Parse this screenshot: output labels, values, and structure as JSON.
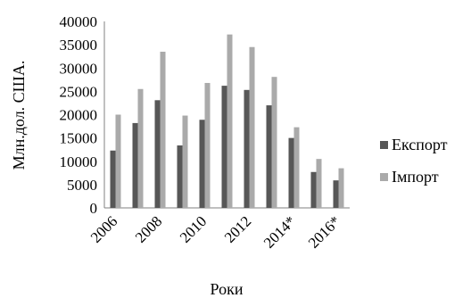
{
  "chart_data": {
    "type": "bar",
    "categories": [
      "2006",
      "2007",
      "2008",
      "2009",
      "2010",
      "2011",
      "2012",
      "2013",
      "2014*",
      "2015*",
      "2016*"
    ],
    "visible_x_tick_labels": [
      "2006",
      "2008",
      "2010",
      "2012",
      "2014*",
      "2016*"
    ],
    "series": [
      {
        "name": "Експорт",
        "values": [
          12300,
          18200,
          23100,
          13400,
          18900,
          26200,
          25300,
          22000,
          15000,
          7700,
          5900
        ],
        "color": "#575757"
      },
      {
        "name": "Імпорт",
        "values": [
          20000,
          25500,
          33500,
          19800,
          26800,
          37200,
          34500,
          28100,
          17300,
          10500,
          8500
        ],
        "color": "#aaaaaa"
      }
    ],
    "ylim": [
      0,
      40000
    ],
    "yticks": [
      "0",
      "5000",
      "10000",
      "15000",
      "20000",
      "25000",
      "30000",
      "35000",
      "40000"
    ],
    "xlabel": "Роки",
    "ylabel": "Млн.дол. США.",
    "legend_position": "right",
    "grid": false
  }
}
